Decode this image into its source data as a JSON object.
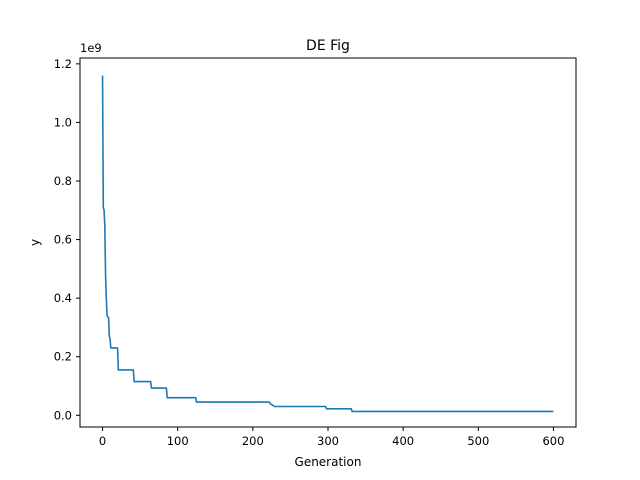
{
  "chart_data": {
    "type": "line",
    "title": "DE Fig",
    "xlabel": "Generation",
    "ylabel": "y",
    "y_scale_label": "1e9",
    "xlim": [
      -30,
      630
    ],
    "ylim": [
      -0.04,
      1.22
    ],
    "x_ticks": [
      0,
      100,
      200,
      300,
      400,
      500,
      600
    ],
    "x_tick_labels": [
      "0",
      "100",
      "200",
      "300",
      "400",
      "500",
      "600"
    ],
    "y_ticks": [
      0.0,
      0.2,
      0.4,
      0.6,
      0.8,
      1.0,
      1.2
    ],
    "y_tick_labels": [
      "0.0",
      "0.2",
      "0.4",
      "0.6",
      "0.8",
      "1.0",
      "1.2"
    ],
    "grid": false,
    "line_color": "#1f77b4",
    "series": [
      {
        "x": [
          0,
          1,
          2,
          3,
          4,
          5,
          6,
          7,
          8,
          9,
          10,
          11,
          12,
          13,
          14,
          15,
          16,
          17,
          18,
          19,
          20,
          21,
          22,
          23,
          41,
          42,
          43,
          64,
          65,
          66,
          85,
          86,
          87,
          124,
          125,
          126,
          222,
          223,
          229,
          230,
          297,
          298,
          330,
          331,
          332,
          600
        ],
        "y": [
          1.16,
          0.71,
          0.7,
          0.65,
          0.48,
          0.4,
          0.34,
          0.335,
          0.334,
          0.27,
          0.26,
          0.23,
          0.23,
          0.23,
          0.23,
          0.23,
          0.23,
          0.23,
          0.23,
          0.23,
          0.23,
          0.155,
          0.155,
          0.155,
          0.155,
          0.115,
          0.115,
          0.115,
          0.093,
          0.093,
          0.093,
          0.06,
          0.06,
          0.06,
          0.045,
          0.045,
          0.045,
          0.04,
          0.03,
          0.03,
          0.03,
          0.022,
          0.022,
          0.022,
          0.013,
          0.013
        ]
      }
    ]
  }
}
